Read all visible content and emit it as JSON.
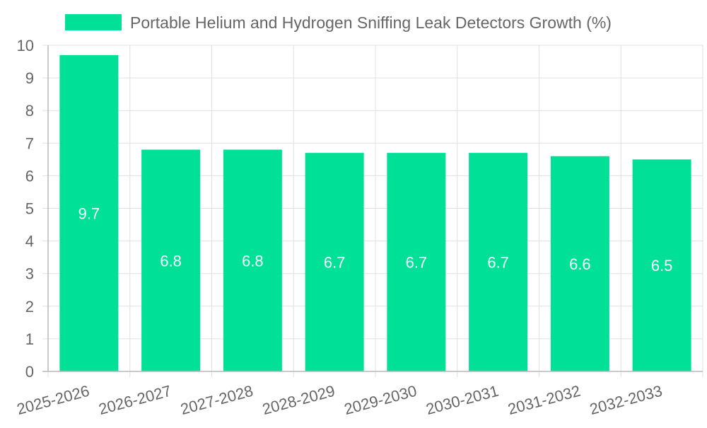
{
  "chart_data": {
    "type": "bar",
    "title": "",
    "xlabel": "",
    "ylabel": "",
    "categories": [
      "2025-2026",
      "2026-2027",
      "2027-2028",
      "2028-2029",
      "2029-2030",
      "2030-2031",
      "2031-2032",
      "2032-2033"
    ],
    "series": [
      {
        "name": "Portable Helium and Hydrogen Sniffing Leak Detectors Growth (%)",
        "values": [
          9.7,
          6.8,
          6.8,
          6.7,
          6.7,
          6.7,
          6.6,
          6.5
        ],
        "color": "#00e096"
      }
    ],
    "ylim": [
      0,
      10
    ],
    "yticks": [
      0,
      1,
      2,
      3,
      4,
      5,
      6,
      7,
      8,
      9,
      10
    ],
    "grid": true,
    "legend_position": "top-center",
    "data_labels": true
  }
}
